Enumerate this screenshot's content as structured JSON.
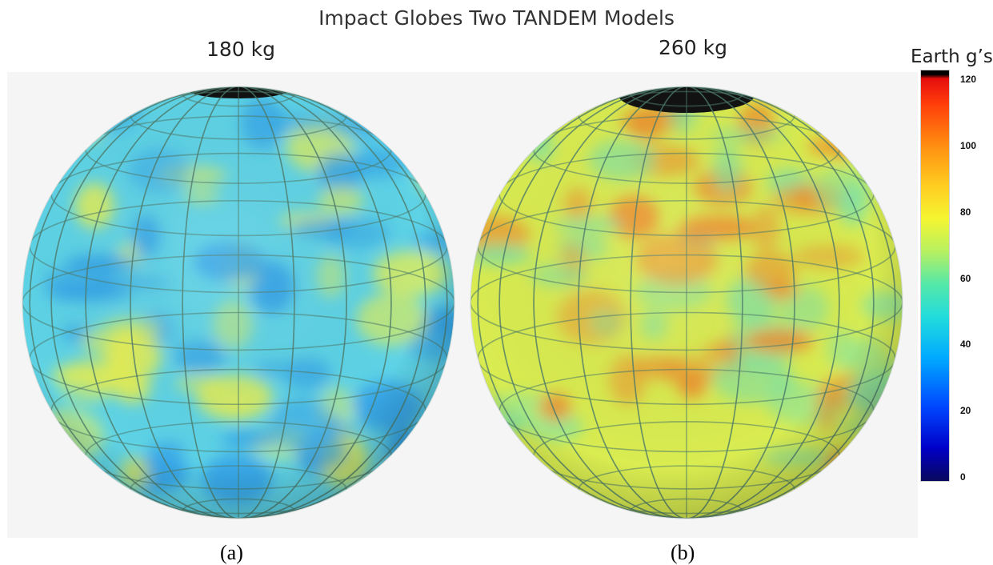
{
  "title": "Impact Globes Two TANDEM Models",
  "panels": [
    {
      "label": "180 kg",
      "tag": "(a)",
      "base_color": "#5ed3e6",
      "hot_color": "#e8ef50",
      "cool_color": "#2f9ee8",
      "pole_color": "#111111"
    },
    {
      "label": "260 kg",
      "tag": "(b)",
      "base_color": "#d9ec50",
      "hot_color": "#f08a2a",
      "cool_color": "#7de2a8",
      "pole_color": "#111111"
    }
  ],
  "colorbar": {
    "title": "Earth g’s",
    "ticks": [
      "120",
      "100",
      "80",
      "60",
      "40",
      "20",
      "0"
    ],
    "range": [
      0,
      120
    ]
  }
}
